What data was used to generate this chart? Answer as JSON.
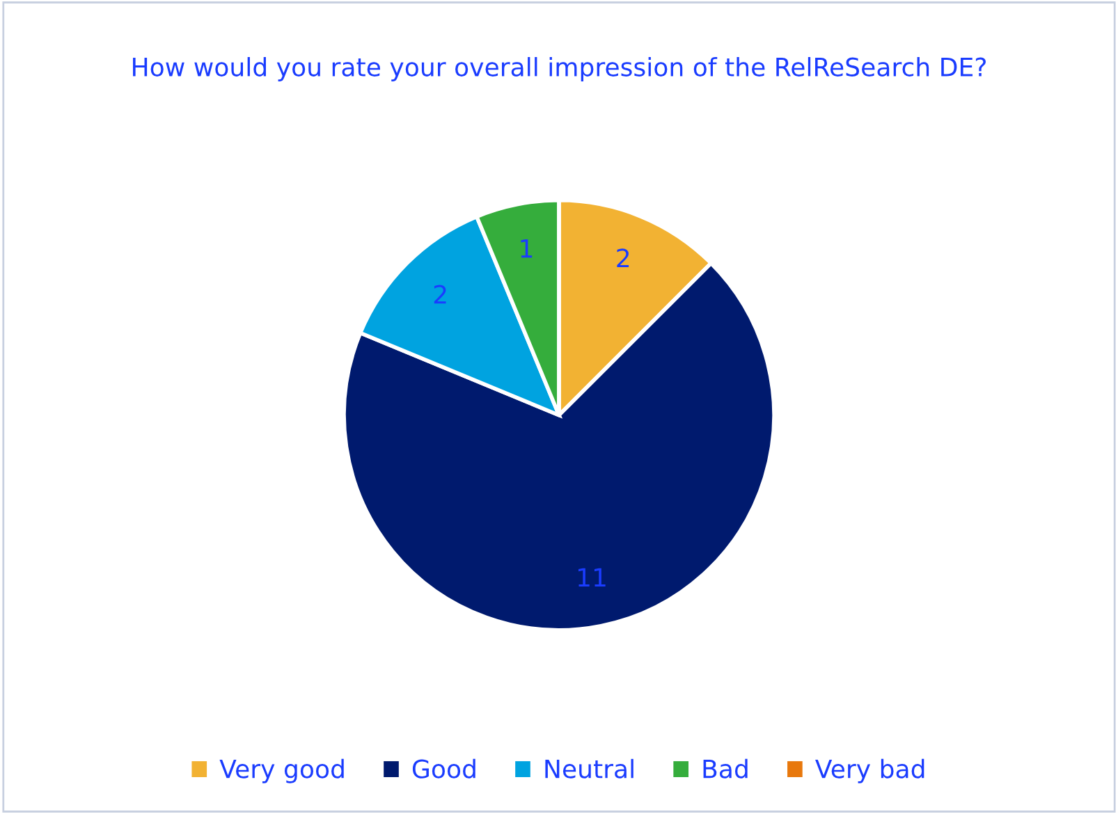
{
  "chart_data": {
    "type": "pie",
    "title": "How would you rate your overall impression of the RelReSearch DE?",
    "categories": [
      "Very good",
      "Good",
      "Neutral",
      "Bad",
      "Very bad"
    ],
    "values": [
      2,
      11,
      2,
      1,
      0
    ],
    "colors": [
      "#f2b233",
      "#001a6e",
      "#00a3e0",
      "#35ad3c",
      "#e8780c"
    ],
    "value_labels": [
      "2",
      "11",
      "2",
      "1",
      null
    ],
    "legend": "bottom"
  }
}
